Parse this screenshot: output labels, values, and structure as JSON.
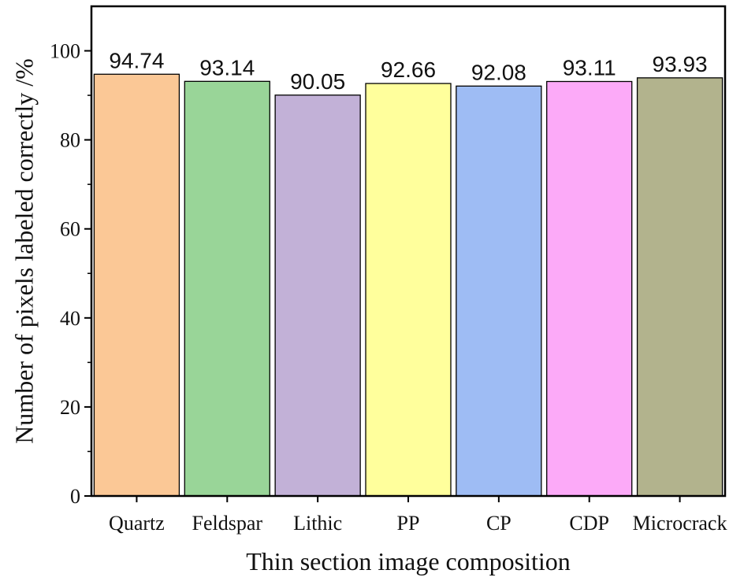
{
  "chart_data": {
    "type": "bar",
    "title": "",
    "xlabel": "Thin section image composition",
    "ylabel": "Number of pixels labeled correctly /%",
    "ylim": [
      0,
      110
    ],
    "yticks": [
      0,
      20,
      40,
      60,
      80,
      100
    ],
    "grid": false,
    "categories": [
      "Quartz",
      "Feldspar",
      "Lithic",
      "PP",
      "CP",
      "CDP",
      "Microcrack"
    ],
    "values": [
      94.74,
      93.14,
      90.05,
      92.66,
      92.08,
      93.11,
      93.93
    ],
    "value_labels": [
      "94.74",
      "93.14",
      "90.05",
      "92.66",
      "92.08",
      "93.11",
      "93.93"
    ],
    "colors": [
      "#FBC896",
      "#99D598",
      "#C2B1D7",
      "#FFFF9C",
      "#9EBCF4",
      "#FCAAF8",
      "#B2B38D"
    ]
  }
}
